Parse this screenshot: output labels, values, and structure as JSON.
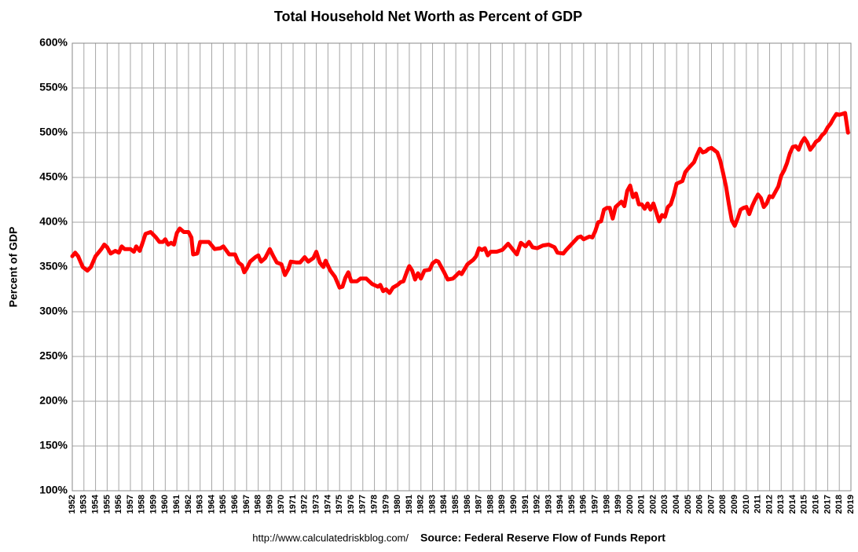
{
  "chart_data": {
    "type": "line",
    "title": "Total Household Net Worth as Percent of GDP",
    "y_label": "Percent of GDP",
    "url": "http://www.calculatedriskblog.com/",
    "source": "Source: Federal Reserve Flow of Funds Report",
    "color": "#ff0000",
    "grid": true,
    "xlim": [
      1952,
      2019
    ],
    "xticks": [
      1952,
      1953,
      1954,
      1955,
      1956,
      1957,
      1958,
      1959,
      1960,
      1961,
      1962,
      1963,
      1964,
      1965,
      1966,
      1967,
      1968,
      1969,
      1970,
      1971,
      1972,
      1973,
      1974,
      1975,
      1976,
      1977,
      1978,
      1979,
      1980,
      1981,
      1982,
      1983,
      1984,
      1985,
      1986,
      1987,
      1988,
      1989,
      1990,
      1991,
      1992,
      1993,
      1994,
      1995,
      1996,
      1997,
      1998,
      1999,
      2000,
      2001,
      2002,
      2003,
      2004,
      2005,
      2006,
      2007,
      2008,
      2009,
      2010,
      2011,
      2012,
      2013,
      2014,
      2015,
      2016,
      2017,
      2018,
      2019
    ],
    "ylim": [
      100,
      600
    ],
    "yticks": [
      {
        "value": 100,
        "label": "100%"
      },
      {
        "value": 150,
        "label": "150%"
      },
      {
        "value": 200,
        "label": "200%"
      },
      {
        "value": 250,
        "label": "250%"
      },
      {
        "value": 300,
        "label": "300%"
      },
      {
        "value": 350,
        "label": "350%"
      },
      {
        "value": 400,
        "label": "400%"
      },
      {
        "value": 450,
        "label": "450%"
      },
      {
        "value": 500,
        "label": "500%"
      },
      {
        "value": 550,
        "label": "550%"
      },
      {
        "value": 600,
        "label": "600%"
      }
    ],
    "x": [
      1952.0,
      1952.25,
      1952.5,
      1952.9,
      1953.3,
      1953.6,
      1954.0,
      1954.5,
      1954.75,
      1955.0,
      1955.3,
      1955.7,
      1956.0,
      1956.25,
      1956.5,
      1957.0,
      1957.3,
      1957.5,
      1957.8,
      1958.0,
      1958.3,
      1958.75,
      1959.2,
      1959.5,
      1959.8,
      1960.0,
      1960.25,
      1960.5,
      1960.75,
      1961.0,
      1961.25,
      1961.6,
      1962.0,
      1962.25,
      1962.4,
      1962.75,
      1963.0,
      1963.5,
      1963.75,
      1964.0,
      1964.25,
      1964.75,
      1965.0,
      1965.5,
      1966.0,
      1966.3,
      1966.6,
      1966.8,
      1967.0,
      1967.3,
      1967.75,
      1968.0,
      1968.25,
      1968.6,
      1969.0,
      1969.3,
      1969.6,
      1970.0,
      1970.3,
      1970.6,
      1970.8,
      1971.3,
      1971.6,
      1972.0,
      1972.3,
      1972.75,
      1973.0,
      1973.3,
      1973.6,
      1973.8,
      1974.2,
      1974.6,
      1975.0,
      1975.25,
      1975.5,
      1975.75,
      1976.0,
      1976.5,
      1976.8,
      1977.3,
      1977.8,
      1978.3,
      1978.5,
      1978.75,
      1979.0,
      1979.3,
      1979.6,
      1980.0,
      1980.25,
      1980.5,
      1980.8,
      1981.0,
      1981.25,
      1981.5,
      1981.75,
      1982.0,
      1982.3,
      1982.75,
      1983.0,
      1983.3,
      1983.5,
      1984.0,
      1984.3,
      1984.75,
      1985.0,
      1985.3,
      1985.5,
      1986.0,
      1986.5,
      1986.75,
      1987.0,
      1987.25,
      1987.5,
      1987.75,
      1988.0,
      1988.5,
      1989.0,
      1989.5,
      1990.0,
      1990.25,
      1990.6,
      1991.0,
      1991.3,
      1991.6,
      1992.0,
      1992.5,
      1993.0,
      1993.5,
      1993.75,
      1994.25,
      1994.5,
      1995.0,
      1995.5,
      1995.75,
      1996.0,
      1996.5,
      1996.75,
      1997.0,
      1997.25,
      1997.5,
      1997.75,
      1998.0,
      1998.25,
      1998.5,
      1998.75,
      1999.0,
      1999.25,
      1999.5,
      1999.75,
      2000.0,
      2000.25,
      2000.5,
      2000.75,
      2001.0,
      2001.25,
      2001.5,
      2001.75,
      2002.0,
      2002.25,
      2002.5,
      2002.75,
      2003.0,
      2003.25,
      2003.5,
      2003.75,
      2004.0,
      2004.5,
      2004.75,
      2005.0,
      2005.5,
      2005.75,
      2006.0,
      2006.25,
      2006.5,
      2006.75,
      2007.0,
      2007.5,
      2007.75,
      2008.0,
      2008.25,
      2008.5,
      2008.75,
      2009.0,
      2009.25,
      2009.5,
      2009.75,
      2010.0,
      2010.25,
      2010.5,
      2010.75,
      2011.0,
      2011.25,
      2011.5,
      2011.75,
      2012.0,
      2012.25,
      2012.5,
      2012.75,
      2013.0,
      2013.25,
      2013.5,
      2013.75,
      2014.0,
      2014.25,
      2014.5,
      2014.75,
      2015.0,
      2015.25,
      2015.5,
      2015.75,
      2016.0,
      2016.25,
      2016.5,
      2016.75,
      2017.0,
      2017.25,
      2017.5,
      2017.75,
      2018.0,
      2018.25,
      2018.5,
      2018.75
    ],
    "values": [
      362,
      366,
      362,
      350,
      346,
      350,
      362,
      370,
      375,
      372,
      365,
      368,
      366,
      373,
      370,
      370,
      367,
      373,
      368,
      375,
      387,
      389,
      383,
      378,
      378,
      381,
      375,
      377,
      375,
      388,
      393,
      389,
      389,
      383,
      364,
      365,
      378,
      378,
      378,
      374,
      370,
      371,
      373,
      364,
      364,
      355,
      352,
      344,
      348,
      356,
      361,
      363,
      356,
      360,
      370,
      362,
      355,
      353,
      341,
      348,
      356,
      355,
      355,
      361,
      356,
      360,
      367,
      355,
      350,
      357,
      346,
      339,
      327,
      328,
      338,
      344,
      334,
      334,
      337,
      337,
      331,
      328,
      330,
      323,
      325,
      321,
      327,
      330,
      333,
      334,
      345,
      351,
      346,
      336,
      343,
      337,
      346,
      347,
      354,
      357,
      356,
      344,
      336,
      337,
      340,
      344,
      342,
      353,
      358,
      362,
      371,
      369,
      371,
      363,
      367,
      367,
      369,
      376,
      368,
      364,
      377,
      373,
      378,
      372,
      371,
      374,
      375,
      372,
      366,
      365,
      369,
      376,
      383,
      384,
      381,
      384,
      383,
      390,
      400,
      401,
      414,
      416,
      416,
      404,
      417,
      420,
      423,
      418,
      435,
      441,
      428,
      432,
      420,
      420,
      415,
      421,
      414,
      421,
      411,
      401,
      408,
      406,
      417,
      420,
      430,
      443,
      446,
      456,
      460,
      467,
      475,
      482,
      478,
      479,
      482,
      483,
      478,
      469,
      455,
      440,
      420,
      402,
      396,
      404,
      414,
      416,
      417,
      409,
      418,
      425,
      431,
      427,
      417,
      421,
      429,
      428,
      434,
      440,
      452,
      458,
      466,
      477,
      484,
      485,
      481,
      489,
      494,
      489,
      481,
      485,
      490,
      492,
      497,
      500,
      506,
      510,
      516,
      521,
      520,
      521,
      522,
      500
    ]
  }
}
